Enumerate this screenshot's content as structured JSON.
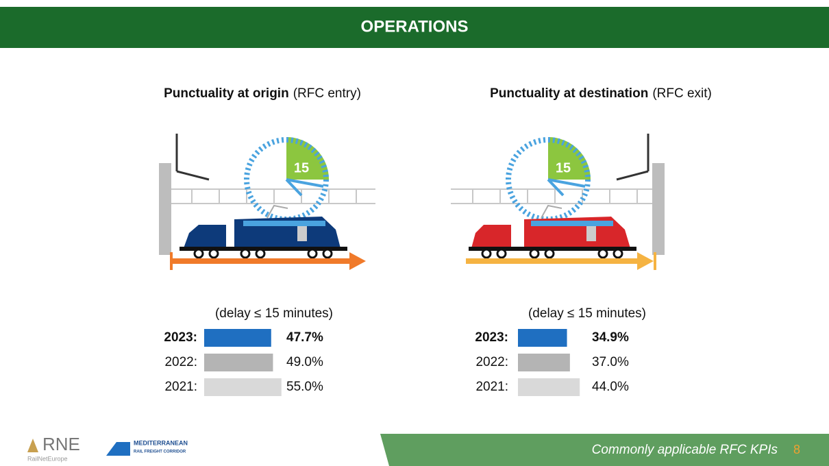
{
  "header": {
    "title": "OPERATIONS"
  },
  "illustrations": [
    {
      "clock_label": "15"
    },
    {
      "clock_label": "15"
    }
  ],
  "chart_data": [
    {
      "type": "bar",
      "title": "Punctuality at origin",
      "title_note": "(RFC entry)",
      "subtitle": "(delay ≤ 15 minutes)",
      "categories": [
        "2023:",
        "2022:",
        "2021:"
      ],
      "values": [
        47.7,
        49.0,
        55.0
      ],
      "value_labels": [
        "47.7%",
        "49.0%",
        "55.0%"
      ],
      "colors": [
        "#1f6fc1",
        "#b4b4b4",
        "#d9d9d9"
      ],
      "orientation": "horizontal"
    },
    {
      "type": "bar",
      "title": "Punctuality at destination",
      "title_note": "(RFC exit)",
      "subtitle": "(delay ≤ 15 minutes)",
      "categories": [
        "2023:",
        "2022:",
        "2021:"
      ],
      "values": [
        34.9,
        37.0,
        44.0
      ],
      "value_labels": [
        "34.9%",
        "37.0%",
        "44.0%"
      ],
      "colors": [
        "#1f6fc1",
        "#b4b4b4",
        "#d9d9d9"
      ],
      "orientation": "horizontal"
    }
  ],
  "footer": {
    "logo_rne": "RNE",
    "logo_rne_sub": "RailNetEurope",
    "logo_corridor": "MEDITERRANEAN",
    "logo_corridor_sub": "RAIL FREIGHT CORRIDOR",
    "text": "Commonly applicable RFC KPIs",
    "page": "8"
  }
}
